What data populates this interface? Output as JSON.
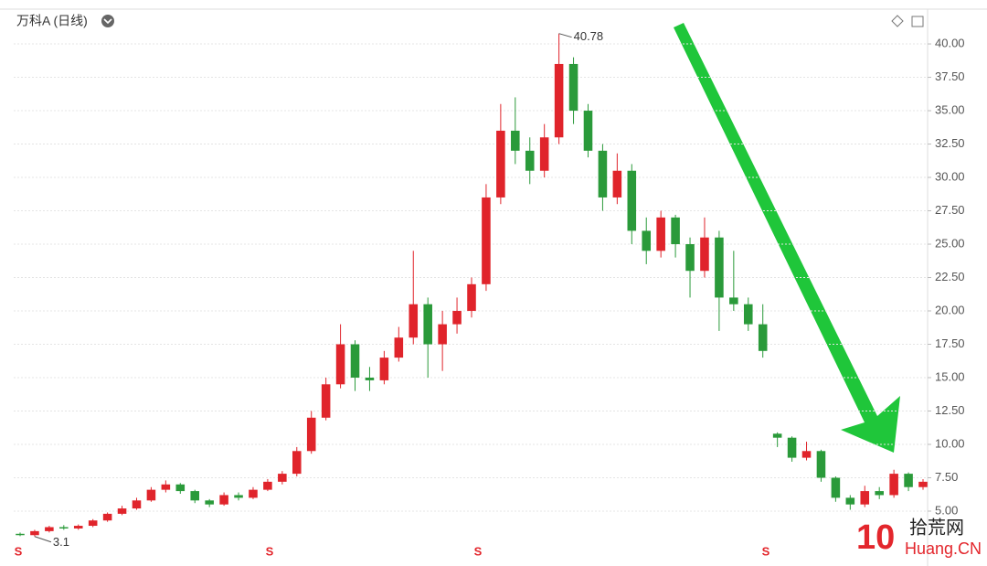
{
  "chart_data": {
    "type": "candlestick",
    "title": "万科A (日线)",
    "open": [
      3.3,
      3.2,
      3.5,
      3.8,
      3.7,
      3.9,
      4.3,
      4.8,
      5.2,
      5.8,
      6.6,
      7.0,
      6.5,
      5.8,
      5.5,
      6.2,
      6.0,
      6.6,
      7.2,
      7.8,
      9.5,
      12.0,
      14.5,
      17.5,
      15.0,
      14.8,
      16.5,
      18.0,
      20.5,
      17.5,
      19.0,
      20.0,
      22.0,
      28.5,
      33.5,
      32.0,
      30.5,
      33.0,
      38.5,
      35.0,
      32.0,
      28.5,
      30.5,
      26.0,
      24.5,
      27.0,
      25.0,
      23.0,
      25.5,
      21.0,
      20.5,
      19.0,
      10.8,
      10.5,
      9.0,
      9.5,
      7.5,
      6.0,
      5.5,
      6.5,
      6.2,
      7.8,
      6.8
    ],
    "high": [
      3.4,
      3.6,
      3.9,
      3.95,
      4.0,
      4.4,
      4.9,
      5.4,
      6.0,
      6.8,
      7.3,
      7.1,
      6.6,
      5.9,
      6.4,
      6.4,
      6.8,
      7.4,
      8.0,
      9.8,
      12.5,
      15.0,
      19.0,
      17.8,
      15.8,
      17.0,
      18.8,
      24.5,
      21.0,
      20.0,
      21.0,
      22.5,
      29.5,
      35.5,
      36.0,
      33.0,
      34.0,
      40.78,
      39.0,
      35.5,
      32.5,
      31.8,
      31.0,
      27.0,
      27.5,
      27.2,
      25.5,
      27.0,
      26.0,
      24.5,
      21.0,
      20.5,
      10.9,
      10.6,
      10.2,
      9.6,
      7.6,
      6.2,
      6.9,
      6.8,
      8.1,
      7.9,
      7.4
    ],
    "low": [
      3.12,
      3.1,
      3.4,
      3.6,
      3.6,
      3.8,
      4.2,
      4.7,
      5.1,
      5.7,
      6.4,
      6.3,
      5.6,
      5.3,
      5.4,
      5.8,
      5.9,
      6.5,
      7.0,
      7.6,
      9.3,
      11.8,
      14.2,
      14.0,
      14.0,
      14.5,
      16.2,
      17.5,
      15.0,
      15.5,
      18.3,
      19.5,
      21.5,
      28.0,
      31.0,
      29.5,
      30.0,
      32.5,
      34.0,
      31.5,
      27.5,
      28.0,
      25.0,
      23.5,
      24.0,
      24.0,
      21.0,
      22.5,
      18.5,
      20.0,
      18.5,
      16.5,
      9.8,
      8.7,
      8.8,
      7.2,
      5.7,
      5.1,
      5.3,
      5.9,
      6.0,
      6.5,
      6.6
    ],
    "close": [
      3.2,
      3.5,
      3.8,
      3.7,
      3.9,
      4.3,
      4.8,
      5.2,
      5.8,
      6.6,
      7.0,
      6.5,
      5.8,
      5.5,
      6.2,
      6.0,
      6.6,
      7.2,
      7.8,
      9.5,
      12.0,
      14.5,
      17.5,
      15.0,
      14.8,
      16.5,
      18.0,
      20.5,
      17.5,
      19.0,
      20.0,
      22.0,
      28.5,
      33.5,
      32.0,
      30.5,
      33.0,
      38.5,
      35.0,
      32.0,
      28.5,
      30.5,
      26.0,
      24.5,
      27.0,
      25.0,
      23.0,
      25.5,
      21.0,
      20.5,
      19.0,
      17.0,
      10.5,
      9.0,
      9.5,
      7.5,
      6.0,
      5.5,
      6.5,
      6.2,
      7.8,
      6.8,
      7.2
    ],
    "up_color": "#e0242b",
    "down_color": "#2a9a3a",
    "ylim": [
      2.19,
      42.47
    ],
    "yticks": [
      {
        "value": 5,
        "label": "5.00"
      },
      {
        "value": 7.5,
        "label": "7.50"
      },
      {
        "value": 10,
        "label": "10.00"
      },
      {
        "value": 12.5,
        "label": "12.50"
      },
      {
        "value": 15,
        "label": "15.00"
      },
      {
        "value": 17.5,
        "label": "17.50"
      },
      {
        "value": 20,
        "label": "20.00"
      },
      {
        "value": 22.5,
        "label": "22.50"
      },
      {
        "value": 25,
        "label": "25.00"
      },
      {
        "value": 27.5,
        "label": "27.50"
      },
      {
        "value": 30,
        "label": "30.00"
      },
      {
        "value": 32.5,
        "label": "32.50"
      },
      {
        "value": 35,
        "label": "35.00"
      },
      {
        "value": 37.5,
        "label": "37.50"
      },
      {
        "value": 40,
        "label": "40.00"
      }
    ],
    "grid": true,
    "y_axis_side": "right",
    "event_markers": [
      "S",
      "S",
      "S",
      "S"
    ],
    "watermark": {
      "logo": "10",
      "name": "拾荒网",
      "site": "Huang.CN"
    }
  }
}
